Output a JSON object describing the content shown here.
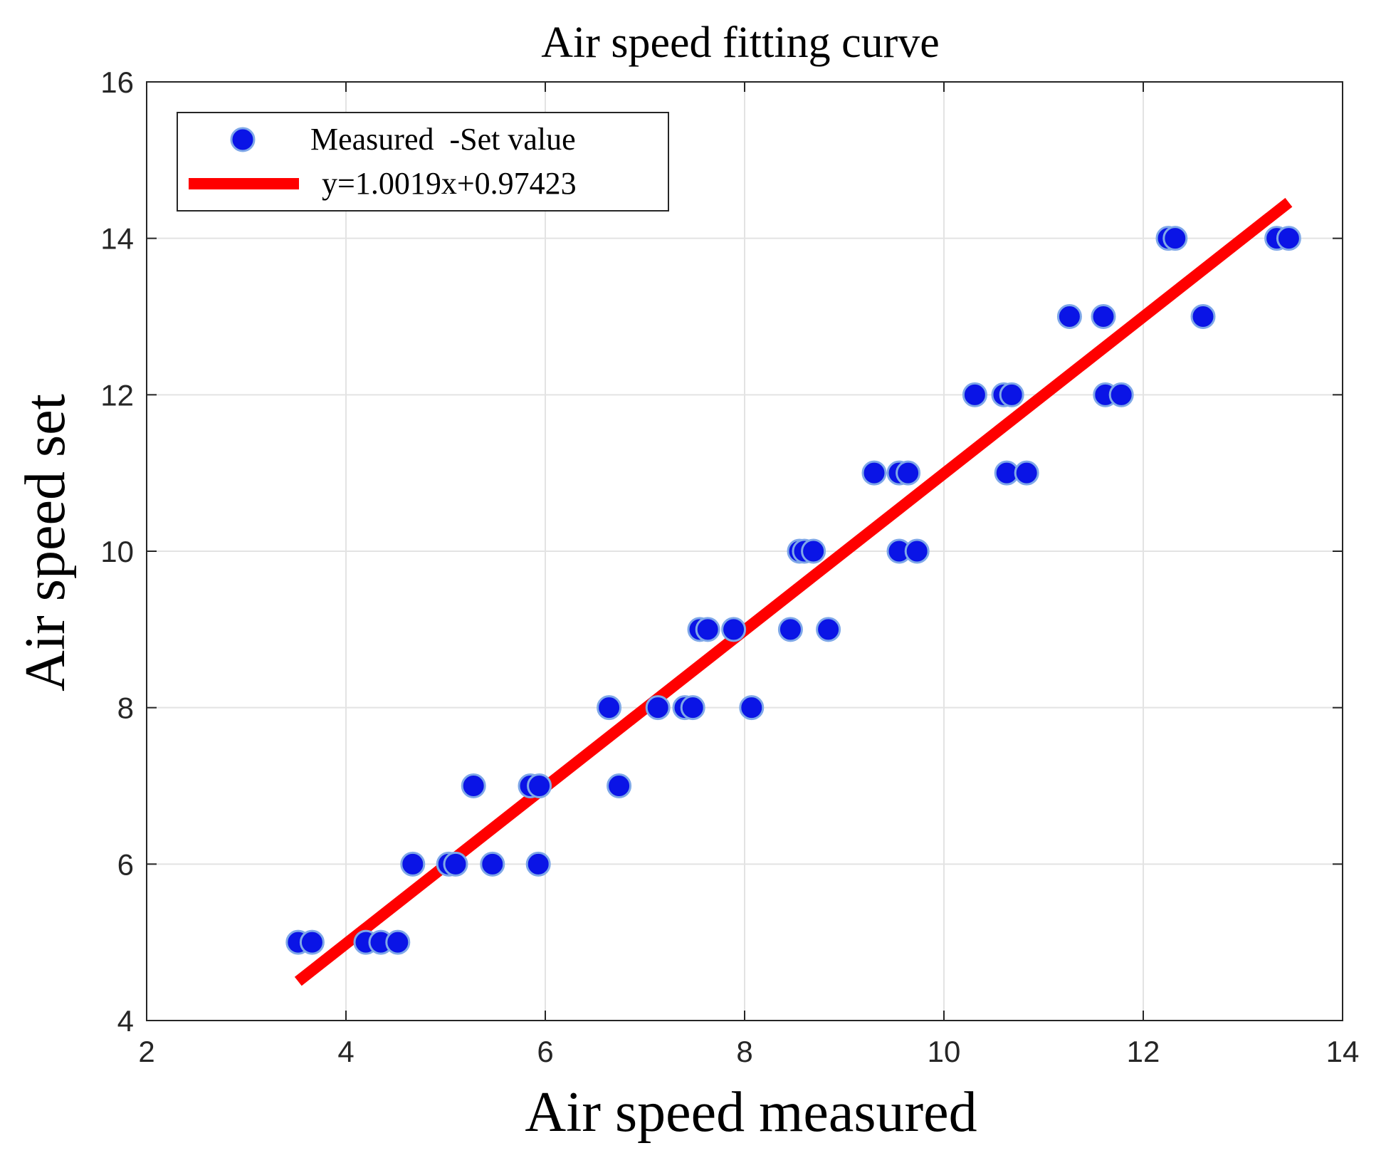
{
  "chart_data": {
    "type": "scatter",
    "title": "Air speed fitting curve",
    "xlabel": "Air speed measured",
    "ylabel": "Air speed set",
    "xlim": [
      2,
      14
    ],
    "ylim": [
      4,
      16
    ],
    "xticks": [
      "2",
      "4",
      "6",
      "8",
      "10",
      "12",
      "14"
    ],
    "yticks": [
      "4",
      "6",
      "8",
      "10",
      "12",
      "14",
      "16"
    ],
    "grid": true,
    "legend_position": "top-left",
    "series": [
      {
        "name": "Measured  -Set value",
        "kind": "scatter",
        "color": "#0a14e6",
        "points": [
          [
            3.52,
            5
          ],
          [
            3.66,
            5
          ],
          [
            4.2,
            5
          ],
          [
            4.35,
            5
          ],
          [
            4.52,
            5
          ],
          [
            4.67,
            6
          ],
          [
            5.03,
            6
          ],
          [
            5.1,
            6
          ],
          [
            5.47,
            6
          ],
          [
            5.93,
            6
          ],
          [
            5.28,
            7
          ],
          [
            5.85,
            7
          ],
          [
            5.94,
            7
          ],
          [
            6.74,
            7
          ],
          [
            6.64,
            8
          ],
          [
            7.13,
            8
          ],
          [
            7.4,
            8
          ],
          [
            7.48,
            8
          ],
          [
            8.07,
            8
          ],
          [
            7.55,
            9
          ],
          [
            7.63,
            9
          ],
          [
            7.89,
            9
          ],
          [
            8.46,
            9
          ],
          [
            8.84,
            9
          ],
          [
            8.55,
            10
          ],
          [
            8.6,
            10
          ],
          [
            8.69,
            10
          ],
          [
            9.55,
            10
          ],
          [
            9.73,
            10
          ],
          [
            9.3,
            11
          ],
          [
            9.55,
            11
          ],
          [
            9.64,
            11
          ],
          [
            10.63,
            11
          ],
          [
            10.83,
            11
          ],
          [
            10.31,
            12
          ],
          [
            10.6,
            12
          ],
          [
            10.68,
            12
          ],
          [
            11.62,
            12
          ],
          [
            11.78,
            12
          ],
          [
            11.26,
            13
          ],
          [
            11.6,
            13
          ],
          [
            12.6,
            13
          ],
          [
            12.25,
            14
          ],
          [
            12.32,
            14
          ],
          [
            13.34,
            14
          ],
          [
            13.46,
            14
          ]
        ]
      },
      {
        "name": "y=1.0019x+0.97423",
        "kind": "line",
        "color": "#ff0000",
        "slope": 1.0019,
        "intercept": 0.97423,
        "x_range": [
          3.52,
          13.46
        ]
      }
    ]
  }
}
